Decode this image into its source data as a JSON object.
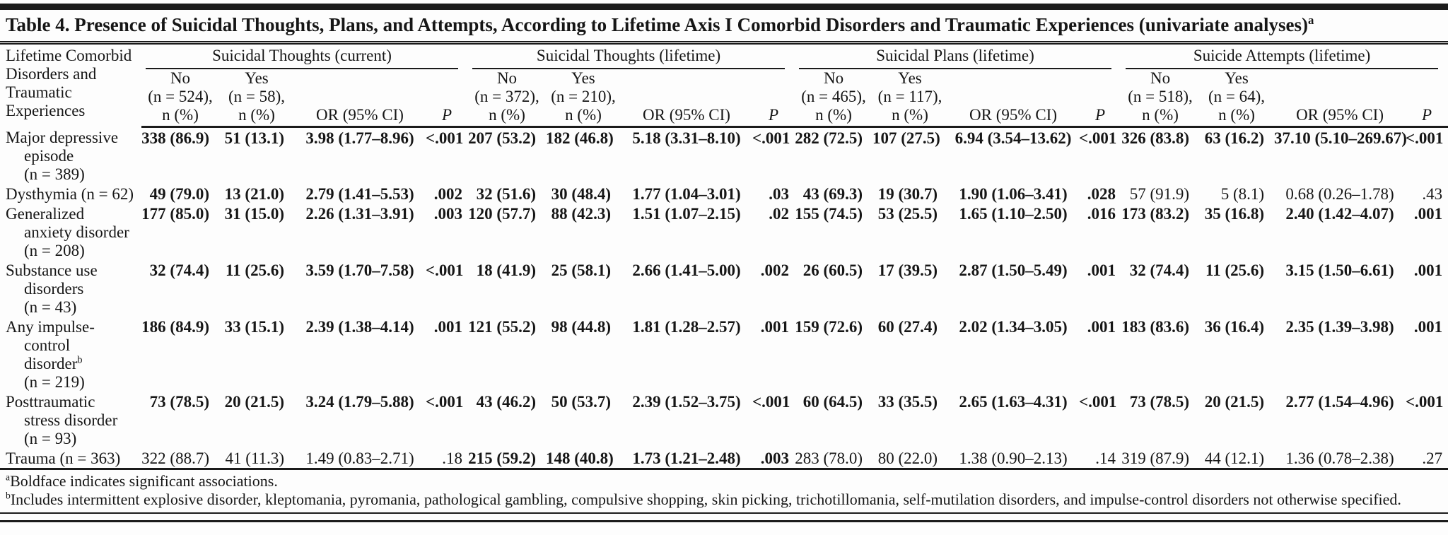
{
  "title": {
    "text": "Table 4. Presence of Suicidal Thoughts, Plans, and Attempts, According to Lifetime Axis I Comorbid Disorders and Traumatic Experiences (univariate analyses)",
    "sup": "a"
  },
  "header": {
    "stub": "Lifetime Comorbid\nDisorders and\nTraumatic\nExperiences",
    "groups": [
      {
        "label": "Suicidal Thoughts (current)",
        "no": "No\n(n = 524),\nn (%)",
        "yes": "Yes\n(n = 58),\nn (%)",
        "or": "OR (95% CI)",
        "p": "P"
      },
      {
        "label": "Suicidal Thoughts (lifetime)",
        "no": "No\n(n = 372),\nn (%)",
        "yes": "Yes\n(n = 210),\nn (%)",
        "or": "OR (95% CI)",
        "p": "P"
      },
      {
        "label": "Suicidal Plans (lifetime)",
        "no": "No\n(n = 465),\nn (%)",
        "yes": "Yes\n(n = 117),\nn (%)",
        "or": "OR (95% CI)",
        "p": "P"
      },
      {
        "label": "Suicide Attempts (lifetime)",
        "no": "No\n(n = 518),\nn (%)",
        "yes": "Yes\n(n = 64),\nn (%)",
        "or": "OR (95% CI)",
        "p": "P"
      }
    ]
  },
  "rows": [
    {
      "label": "Major depressive\nepisode\n(n = 389)",
      "sup": "",
      "suffix": "",
      "cells": [
        {
          "no": "338 (86.9)",
          "yes": "51 (13.1)",
          "or": "3.98 (1.77–8.96)",
          "p": "<.001",
          "bold": true
        },
        {
          "no": "207 (53.2)",
          "yes": "182 (46.8)",
          "or": "5.18 (3.31–8.10)",
          "p": "<.001",
          "bold": true
        },
        {
          "no": "282 (72.5)",
          "yes": "107 (27.5)",
          "or": "6.94 (3.54–13.62)",
          "p": "<.001",
          "bold": true
        },
        {
          "no": "326 (83.8)",
          "yes": "63 (16.2)",
          "or": "37.10 (5.10–269.67)",
          "p": "<.001",
          "bold": true
        }
      ]
    },
    {
      "label": "Dysthymia (n = 62)",
      "sup": "",
      "suffix": "",
      "cells": [
        {
          "no": "49 (79.0)",
          "yes": "13 (21.0)",
          "or": "2.79 (1.41–5.53)",
          "p": ".002",
          "bold": true
        },
        {
          "no": "32 (51.6)",
          "yes": "30 (48.4)",
          "or": "1.77 (1.04–3.01)",
          "p": ".03",
          "bold": true
        },
        {
          "no": "43 (69.3)",
          "yes": "19 (30.7)",
          "or": "1.90 (1.06–3.41)",
          "p": ".028",
          "bold": true
        },
        {
          "no": "57 (91.9)",
          "yes": "5 (8.1)",
          "or": "0.68 (0.26–1.78)",
          "p": ".43",
          "bold": false
        }
      ]
    },
    {
      "label": "Generalized\nanxiety disorder\n(n = 208)",
      "sup": "",
      "suffix": "",
      "cells": [
        {
          "no": "177 (85.0)",
          "yes": "31 (15.0)",
          "or": "2.26 (1.31–3.91)",
          "p": ".003",
          "bold": true
        },
        {
          "no": "120 (57.7)",
          "yes": "88 (42.3)",
          "or": "1.51 (1.07–2.15)",
          "p": ".02",
          "bold": true
        },
        {
          "no": "155 (74.5)",
          "yes": "53 (25.5)",
          "or": "1.65 (1.10–2.50)",
          "p": ".016",
          "bold": true
        },
        {
          "no": "173 (83.2)",
          "yes": "35 (16.8)",
          "or": "2.40 (1.42–4.07)",
          "p": ".001",
          "bold": true
        }
      ]
    },
    {
      "label": "Substance use\ndisorders\n(n = 43)",
      "sup": "",
      "suffix": "",
      "cells": [
        {
          "no": "32 (74.4)",
          "yes": "11 (25.6)",
          "or": "3.59 (1.70–7.58)",
          "p": "<.001",
          "bold": true
        },
        {
          "no": "18 (41.9)",
          "yes": "25 (58.1)",
          "or": "2.66 (1.41–5.00)",
          "p": ".002",
          "bold": true
        },
        {
          "no": "26 (60.5)",
          "yes": "17 (39.5)",
          "or": "2.87 (1.50–5.49)",
          "p": ".001",
          "bold": true
        },
        {
          "no": "32 (74.4)",
          "yes": "11 (25.6)",
          "or": "3.15 (1.50–6.61)",
          "p": ".001",
          "bold": true
        }
      ]
    },
    {
      "label": "Any impulse-\ncontrol\ndisorder",
      "sup": "b",
      "suffix": "\n(n = 219)",
      "cells": [
        {
          "no": "186 (84.9)",
          "yes": "33 (15.1)",
          "or": "2.39 (1.38–4.14)",
          "p": ".001",
          "bold": true
        },
        {
          "no": "121 (55.2)",
          "yes": "98 (44.8)",
          "or": "1.81 (1.28–2.57)",
          "p": ".001",
          "bold": true
        },
        {
          "no": "159 (72.6)",
          "yes": "60 (27.4)",
          "or": "2.02 (1.34–3.05)",
          "p": ".001",
          "bold": true
        },
        {
          "no": "183 (83.6)",
          "yes": "36 (16.4)",
          "or": "2.35 (1.39–3.98)",
          "p": ".001",
          "bold": true
        }
      ]
    },
    {
      "label": "Posttraumatic\nstress disorder\n(n = 93)",
      "sup": "",
      "suffix": "",
      "cells": [
        {
          "no": "73 (78.5)",
          "yes": "20 (21.5)",
          "or": "3.24 (1.79–5.88)",
          "p": "<.001",
          "bold": true
        },
        {
          "no": "43 (46.2)",
          "yes": "50 (53.7)",
          "or": "2.39 (1.52–3.75)",
          "p": "<.001",
          "bold": true
        },
        {
          "no": "60 (64.5)",
          "yes": "33 (35.5)",
          "or": "2.65 (1.63–4.31)",
          "p": "<.001",
          "bold": true
        },
        {
          "no": "73 (78.5)",
          "yes": "20 (21.5)",
          "or": "2.77 (1.54–4.96)",
          "p": "<.001",
          "bold": true
        }
      ]
    },
    {
      "label": "Trauma (n = 363)",
      "sup": "",
      "suffix": "",
      "cells": [
        {
          "no": "322 (88.7)",
          "yes": "41 (11.3)",
          "or": "1.49 (0.83–2.71)",
          "p": ".18",
          "bold": false
        },
        {
          "no": "215 (59.2)",
          "yes": "148 (40.8)",
          "or": "1.73 (1.21–2.48)",
          "p": ".003",
          "bold": true
        },
        {
          "no": "283 (78.0)",
          "yes": "80 (22.0)",
          "or": "1.38 (0.90–2.13)",
          "p": ".14",
          "bold": false
        },
        {
          "no": "319 (87.9)",
          "yes": "44 (12.1)",
          "or": "1.36 (0.78–2.38)",
          "p": ".27",
          "bold": false
        }
      ]
    }
  ],
  "footnotes": [
    {
      "sup": "a",
      "text": "Boldface indicates significant associations."
    },
    {
      "sup": "b",
      "text": "Includes intermittent explosive disorder, kleptomania, pyromania, pathological gambling, compulsive shopping, skin picking, trichotillomania, self-mutilation disorders, and impulse-control disorders not otherwise specified."
    }
  ]
}
